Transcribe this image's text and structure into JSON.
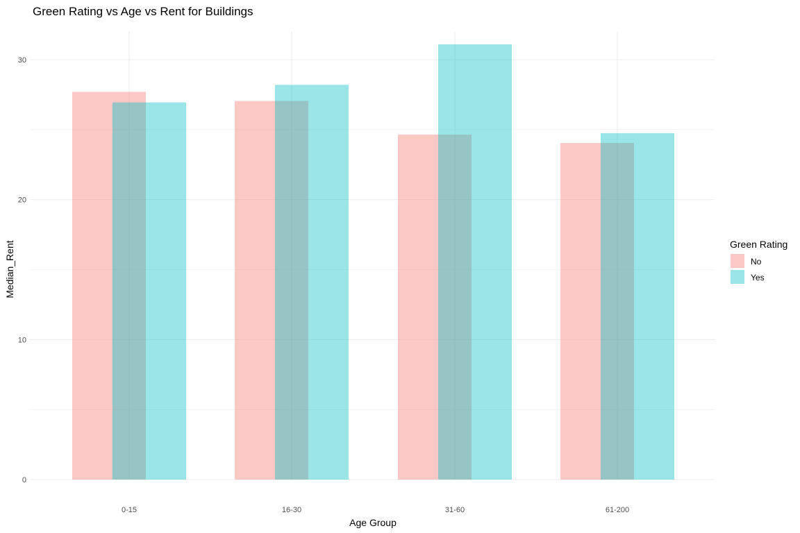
{
  "chart_data": {
    "type": "bar",
    "title": "Green Rating vs Age vs Rent for Buildings",
    "xlabel": "Age Group",
    "ylabel": "Median_Rent",
    "categories": [
      "0-15",
      "16-30",
      "31-60",
      "61-200"
    ],
    "series": [
      {
        "name": "No",
        "values": [
          27.7,
          27.05,
          24.65,
          24.05
        ],
        "color": "#F8766D"
      },
      {
        "name": "Yes",
        "values": [
          26.95,
          28.2,
          31.1,
          24.75
        ],
        "color": "#00BFC4"
      }
    ],
    "ylim": [
      0,
      32
    ],
    "yticks": [
      0,
      10,
      20,
      30
    ],
    "bar_opacity": 0.4,
    "position": "overlapping dodge",
    "grid": true,
    "legend": {
      "title": "Green Rating",
      "placement": "right",
      "items": [
        "No",
        "Yes"
      ]
    }
  }
}
